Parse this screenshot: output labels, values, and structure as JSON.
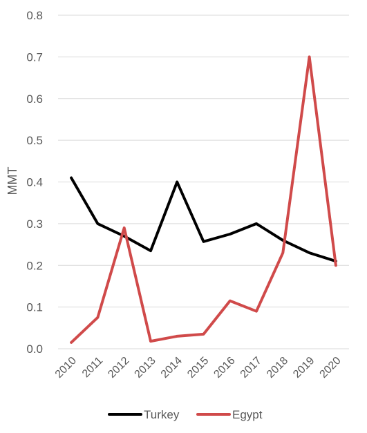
{
  "chart_data": {
    "type": "line",
    "ylabel": "MMT",
    "xlabel": "",
    "title": "",
    "x": [
      "2010",
      "2011",
      "2012",
      "2013",
      "2014",
      "2015",
      "2016",
      "2017",
      "2018",
      "2019",
      "2020"
    ],
    "ylim": [
      0,
      0.8
    ],
    "y_ticks": [
      "0.0",
      "0.1",
      "0.2",
      "0.3",
      "0.4",
      "0.5",
      "0.6",
      "0.7",
      "0.8"
    ],
    "grid": "horizontal",
    "legend_position": "bottom",
    "series": [
      {
        "name": "Turkey",
        "color": "#000000",
        "values": [
          0.41,
          0.3,
          0.27,
          0.235,
          0.4,
          0.257,
          0.275,
          0.3,
          0.26,
          0.23,
          0.21
        ]
      },
      {
        "name": "Egypt",
        "color": "#d04a4a",
        "values": [
          0.015,
          0.075,
          0.29,
          0.018,
          0.03,
          0.035,
          0.115,
          0.09,
          0.23,
          0.7,
          0.2
        ]
      }
    ]
  }
}
